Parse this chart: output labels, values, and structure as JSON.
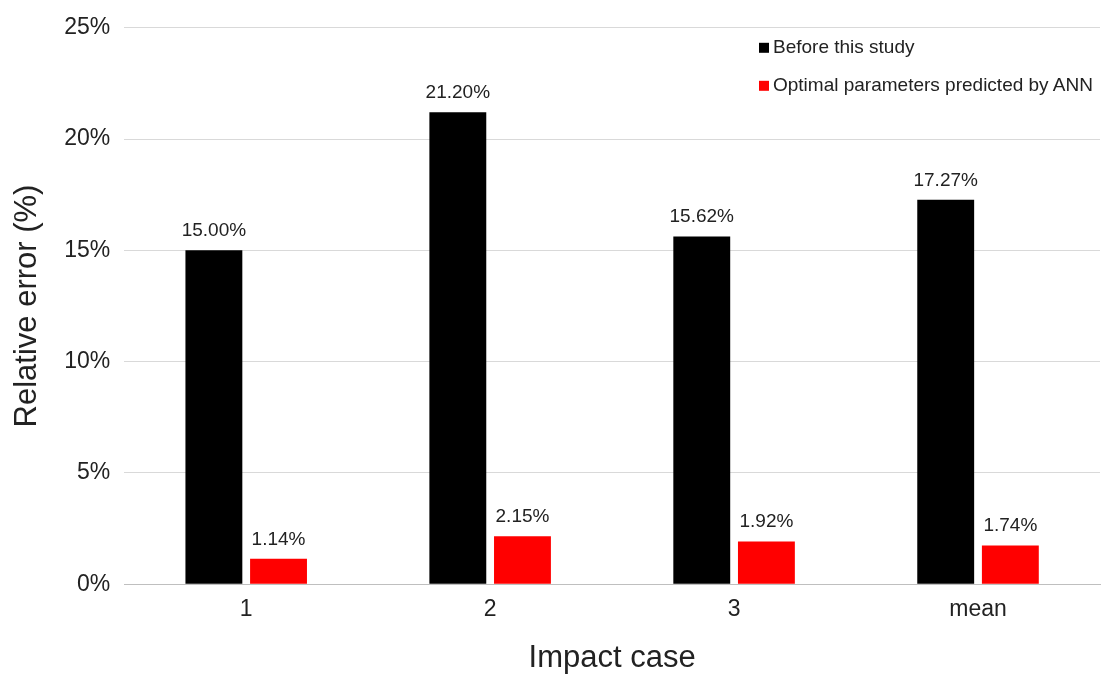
{
  "chart_data": {
    "type": "bar",
    "xlabel": "Impact case",
    "ylabel": "Relative error (%)",
    "categories": [
      "1",
      "2",
      "3",
      "mean"
    ],
    "series": [
      {
        "name": "Before this study",
        "color": "#000000",
        "values": [
          15.0,
          21.2,
          15.62,
          17.27
        ],
        "value_labels": [
          "15.00%",
          "21.20%",
          "15.62%",
          "17.27%"
        ]
      },
      {
        "name": "Optimal parameters predicted by ANN",
        "color": "#ff0000",
        "values": [
          1.14,
          2.15,
          1.92,
          1.74
        ],
        "value_labels": [
          "1.14%",
          "2.15%",
          "1.92%",
          "1.74%"
        ]
      }
    ],
    "ylim": [
      0,
      25
    ],
    "yticks": [
      {
        "value": 0,
        "label": "0%"
      },
      {
        "value": 5,
        "label": "5%"
      },
      {
        "value": 10,
        "label": "10%"
      },
      {
        "value": 15,
        "label": "15%"
      },
      {
        "value": 20,
        "label": "20%"
      },
      {
        "value": 25,
        "label": "25%"
      }
    ],
    "grid": "y",
    "legend": "top right"
  }
}
